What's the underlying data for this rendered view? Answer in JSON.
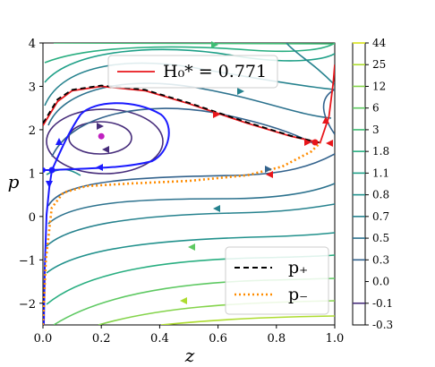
{
  "chart_data": {
    "type": "line",
    "xlabel": "z",
    "ylabel": "p",
    "xlim": [
      0.0,
      1.0
    ],
    "ylim": [
      -2.5,
      4.0
    ],
    "xticks": [
      "0.0",
      "0.2",
      "0.4",
      "0.6",
      "0.8",
      "1.0"
    ],
    "yticks": [
      "−2",
      "−1",
      "0",
      "1",
      "2",
      "3",
      "4"
    ],
    "colorbar": {
      "labels": [
        "44",
        "25",
        "12",
        "6",
        "3",
        "1.8",
        "1.1",
        "0.8",
        "0.7",
        "0.5",
        "0.3",
        "0.0",
        "-0.1",
        "-0.3"
      ]
    },
    "contour_levels": [
      {
        "level": -0.1,
        "color": "#472d7b"
      },
      {
        "level": 0.3,
        "color": "#33638d"
      },
      {
        "level": 0.5,
        "color": "#2c728e"
      },
      {
        "level": 0.7,
        "color": "#26828e"
      },
      {
        "level": 0.8,
        "color": "#21918c"
      },
      {
        "level": 1.1,
        "color": "#1fa088"
      },
      {
        "level": 1.8,
        "color": "#28ae80"
      },
      {
        "level": 3,
        "color": "#3fbc73"
      },
      {
        "level": 6,
        "color": "#5ec962"
      },
      {
        "level": 12,
        "color": "#84d44b"
      },
      {
        "level": 25,
        "color": "#addc30"
      },
      {
        "level": 44,
        "color": "#d8e219"
      }
    ],
    "fixed_point": {
      "z": 0.2,
      "p": 1.85,
      "color": "#c020c0"
    },
    "series": [
      {
        "name": "H₀* = 0.771",
        "color": "#e8161b",
        "points": [
          [
            0.0,
            2.1
          ],
          [
            0.05,
            2.65
          ],
          [
            0.1,
            2.9
          ],
          [
            0.2,
            3.0
          ],
          [
            0.35,
            2.9
          ],
          [
            0.5,
            2.6
          ],
          [
            0.7,
            2.15
          ],
          [
            0.85,
            1.85
          ],
          [
            0.95,
            1.7
          ],
          [
            0.98,
            2.3
          ],
          [
            0.995,
            3.1
          ],
          [
            1.0,
            3.5
          ]
        ]
      },
      {
        "name": "p₊",
        "color": "#000000",
        "style": "dashed",
        "points": [
          [
            0.0,
            2.15
          ],
          [
            0.05,
            2.7
          ],
          [
            0.1,
            2.92
          ],
          [
            0.2,
            3.02
          ],
          [
            0.35,
            2.92
          ],
          [
            0.5,
            2.62
          ],
          [
            0.7,
            2.17
          ],
          [
            0.85,
            1.86
          ],
          [
            0.95,
            1.7
          ]
        ]
      },
      {
        "name": "p₋",
        "color": "#ff8c00",
        "style": "dotted",
        "points": [
          [
            0.0,
            -2.5
          ],
          [
            0.01,
            -1.0
          ],
          [
            0.03,
            0.2
          ],
          [
            0.07,
            0.55
          ],
          [
            0.15,
            0.7
          ],
          [
            0.3,
            0.76
          ],
          [
            0.5,
            0.82
          ],
          [
            0.7,
            0.95
          ],
          [
            0.82,
            1.15
          ],
          [
            0.92,
            1.5
          ],
          [
            0.95,
            1.7
          ]
        ]
      }
    ],
    "legend": [
      {
        "label": "H₀* = 0.771",
        "style": "solid",
        "color": "#e8161b"
      },
      {
        "label": "p₊",
        "style": "dashed",
        "color": "#000000"
      },
      {
        "label": "p₋",
        "style": "dotted",
        "color": "#ff8c00"
      }
    ],
    "legend_placement": [
      "top-center",
      "bottom-right"
    ],
    "grid": false
  }
}
